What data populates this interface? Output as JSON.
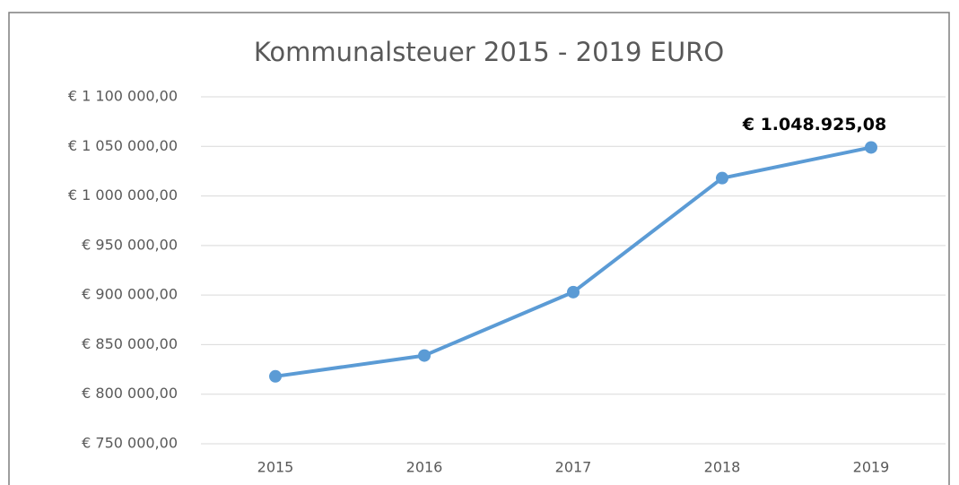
{
  "chart_data": {
    "type": "line",
    "title": "Kommunalsteuer 2015 - 2019 EURO",
    "categories": [
      "2015",
      "2016",
      "2017",
      "2018",
      "2019"
    ],
    "series": [
      {
        "name": "Kommunalsteuer",
        "color": "#5b9bd5",
        "values": [
          818000,
          839000,
          903000,
          1018000,
          1048925.08
        ],
        "value_labels": [
          null,
          null,
          null,
          null,
          "€ 1.048.925,08"
        ]
      }
    ],
    "ylim": [
      750000,
      1100000
    ],
    "yticks": [
      {
        "value": 750000,
        "label": "€ 750 000,00"
      },
      {
        "value": 800000,
        "label": "€ 800 000,00"
      },
      {
        "value": 850000,
        "label": "€ 850 000,00"
      },
      {
        "value": 900000,
        "label": "€ 900 000,00"
      },
      {
        "value": 950000,
        "label": "€ 950 000,00"
      },
      {
        "value": 1000000,
        "label": "€ 1 000 000,00"
      },
      {
        "value": 1050000,
        "label": "€ 1 050 000,00"
      },
      {
        "value": 1100000,
        "label": "€ 1 100 000,00"
      }
    ],
    "grid": true
  }
}
